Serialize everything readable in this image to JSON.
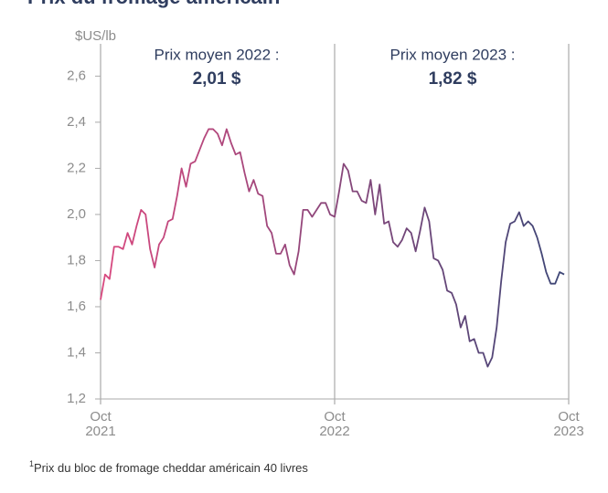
{
  "chart_data": {
    "type": "line",
    "title": "Prix du fromage américain",
    "title_note": "1",
    "y_label": "$US/lb",
    "annotations": [
      {
        "text": "Prix moyen 2022 :",
        "value": "2,01 $"
      },
      {
        "text": "Prix moyen 2023 :",
        "value": "1,82 $"
      }
    ],
    "footnote_mark": "1",
    "footnote": "Prix du bloc de fromage cheddar américain 40 livres",
    "gradient": [
      "#d9487f",
      "#3b4676"
    ],
    "values": [
      1.63,
      1.74,
      1.72,
      1.86,
      1.86,
      1.85,
      1.92,
      1.87,
      1.95,
      2.02,
      2.0,
      1.85,
      1.77,
      1.87,
      1.9,
      1.97,
      1.98,
      2.08,
      2.2,
      2.12,
      2.22,
      2.23,
      2.28,
      2.33,
      2.37,
      2.37,
      2.35,
      2.3,
      2.37,
      2.31,
      2.26,
      2.27,
      2.18,
      2.1,
      2.15,
      2.09,
      2.08,
      1.95,
      1.92,
      1.83,
      1.83,
      1.87,
      1.78,
      1.74,
      1.84,
      2.02,
      2.02,
      1.99,
      2.02,
      2.05,
      2.05,
      2.0,
      1.99,
      2.1,
      2.22,
      2.19,
      2.1,
      2.1,
      2.06,
      2.05,
      2.15,
      2.0,
      2.13,
      1.96,
      1.97,
      1.88,
      1.86,
      1.89,
      1.94,
      1.92,
      1.84,
      1.93,
      2.03,
      1.97,
      1.81,
      1.8,
      1.76,
      1.67,
      1.66,
      1.61,
      1.51,
      1.56,
      1.45,
      1.46,
      1.4,
      1.4,
      1.34,
      1.38,
      1.51,
      1.71,
      1.88,
      1.96,
      1.97,
      2.01,
      1.95,
      1.97,
      1.95,
      1.9,
      1.83,
      1.75,
      1.7,
      1.7,
      1.75,
      1.74
    ],
    "xlim": [
      0,
      104
    ],
    "xticks": [
      {
        "value": 0,
        "label": [
          "Oct",
          "2021"
        ]
      },
      {
        "value": 52,
        "label": [
          "Oct",
          "2022"
        ]
      },
      {
        "value": 104,
        "label": [
          "Oct",
          "2023"
        ]
      }
    ],
    "ylim": [
      1.2,
      2.74
    ],
    "yticks": [
      {
        "value": 1.2,
        "label": "1,2"
      },
      {
        "value": 1.4,
        "label": "1,4"
      },
      {
        "value": 1.6,
        "label": "1,6"
      },
      {
        "value": 1.8,
        "label": "1,8"
      },
      {
        "value": 2.0,
        "label": "2,0"
      },
      {
        "value": 2.2,
        "label": "2,2"
      },
      {
        "value": 2.4,
        "label": "2,4"
      },
      {
        "value": 2.6,
        "label": "2,6"
      }
    ],
    "grid": false
  }
}
